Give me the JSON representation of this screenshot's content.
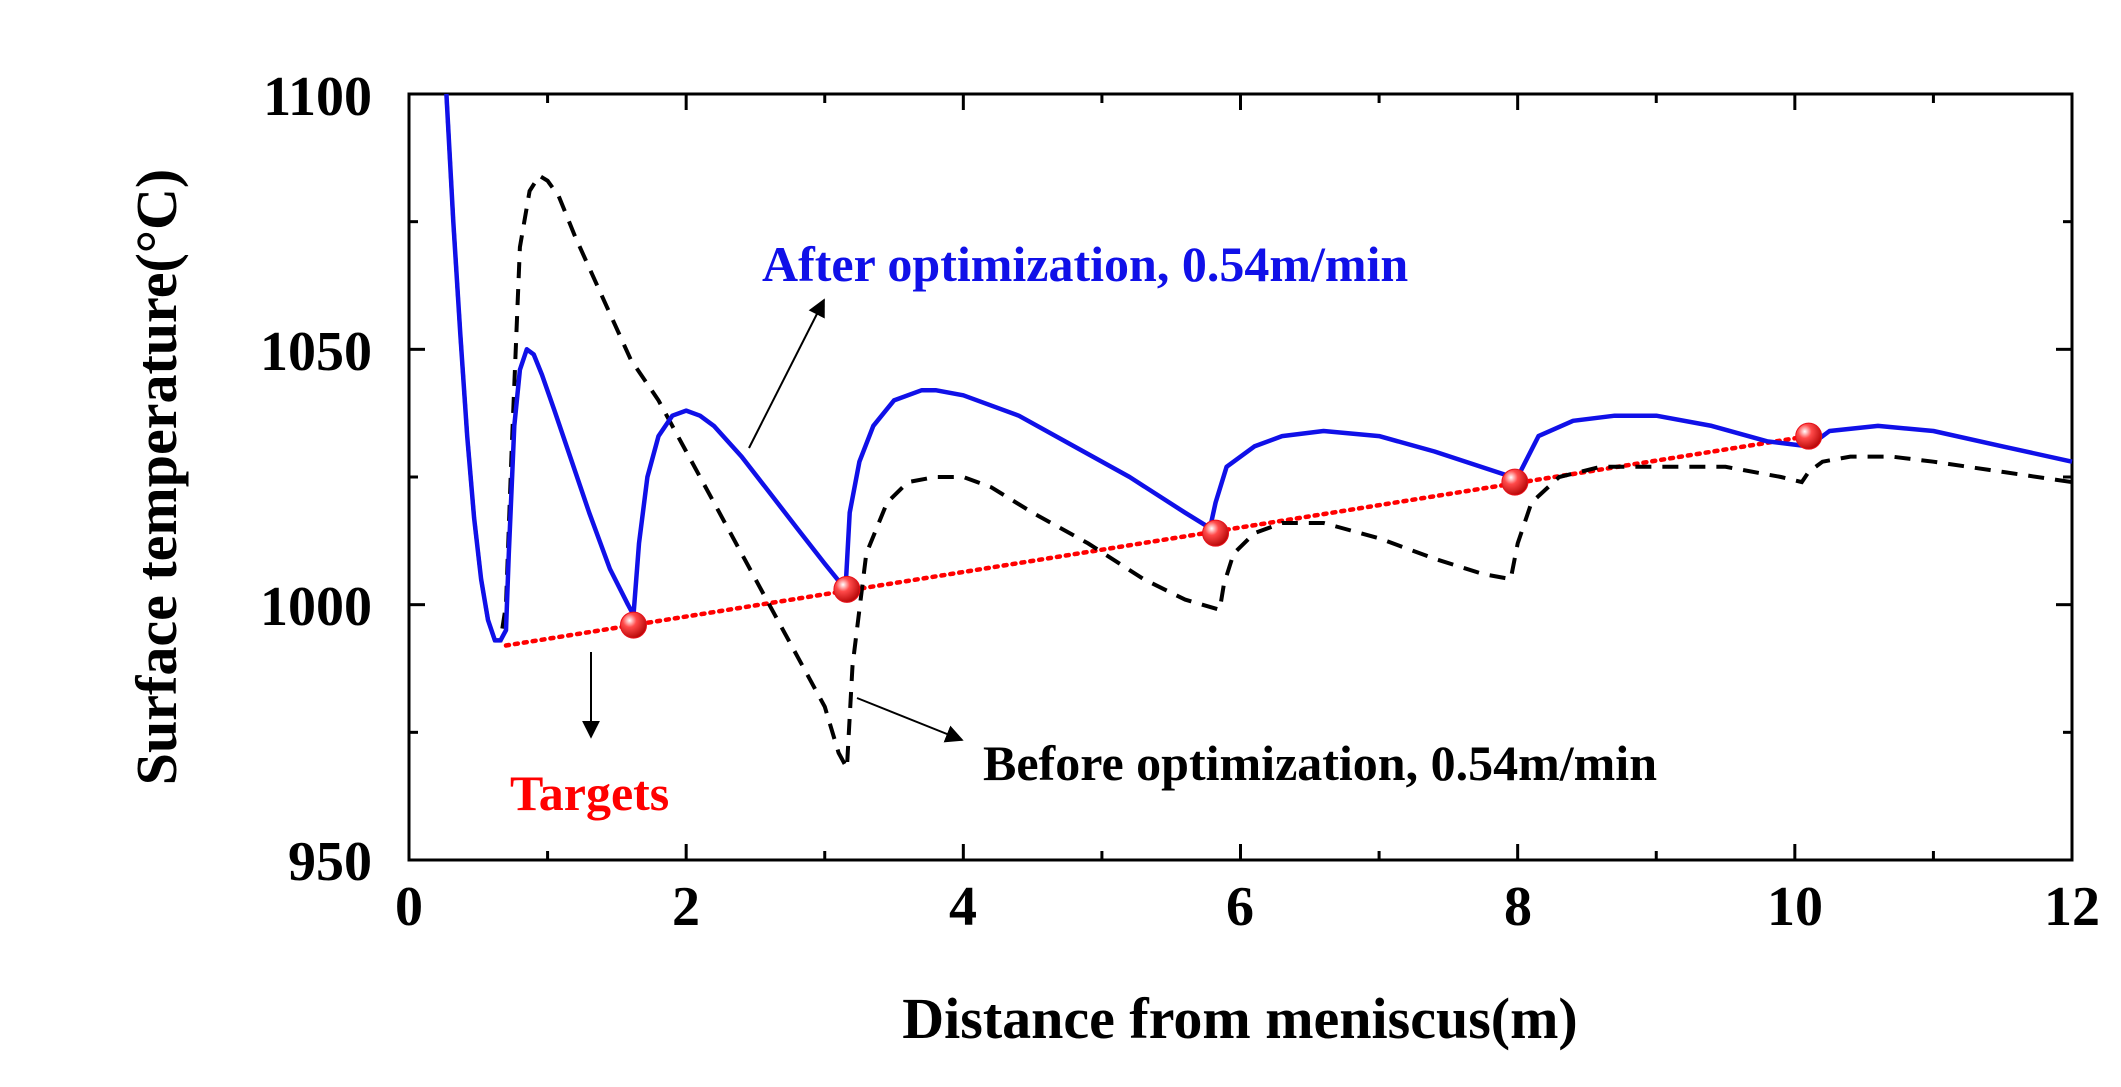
{
  "chart_data": {
    "type": "line",
    "title": "",
    "xlabel": "Distance from meniscus(m)",
    "ylabel": "Surface temperature(°C)",
    "xlim": [
      0,
      12
    ],
    "ylim": [
      950,
      1100
    ],
    "xticks": [
      0,
      2,
      4,
      6,
      8,
      10,
      12
    ],
    "yticks": [
      950,
      1000,
      1050,
      1100
    ],
    "grid": false,
    "colors": {
      "after": "#1010e8",
      "before": "#000000",
      "targets": "#ff0000",
      "target_marker": "#e8101a"
    },
    "series": [
      {
        "name": "After optimization, 0.54m/min",
        "style": "solid",
        "x": [
          0.27,
          0.32,
          0.37,
          0.42,
          0.47,
          0.52,
          0.57,
          0.62,
          0.66,
          0.7,
          0.72,
          0.76,
          0.8,
          0.85,
          0.9,
          0.96,
          1.05,
          1.15,
          1.3,
          1.45,
          1.58,
          1.62,
          1.66,
          1.72,
          1.8,
          1.9,
          2.0,
          2.1,
          2.2,
          2.4,
          2.6,
          2.8,
          3.0,
          3.12,
          3.15,
          3.18,
          3.25,
          3.35,
          3.5,
          3.7,
          3.8,
          4.0,
          4.4,
          4.8,
          5.2,
          5.6,
          5.78,
          5.82,
          5.9,
          6.1,
          6.3,
          6.6,
          7.0,
          7.4,
          7.96,
          8.0,
          8.15,
          8.4,
          8.7,
          9.0,
          9.4,
          9.8,
          10.1,
          10.25,
          10.6,
          11.0,
          11.5,
          12.0
        ],
        "y": [
          1100,
          1075,
          1053,
          1033,
          1017,
          1005,
          997,
          993,
          993,
          995,
          1010,
          1035,
          1046,
          1050,
          1049,
          1045,
          1038,
          1030,
          1018,
          1007,
          1000,
          998,
          1012,
          1025,
          1033,
          1037,
          1038,
          1037,
          1035,
          1029,
          1022,
          1015,
          1008,
          1004,
          1003,
          1018,
          1028,
          1035,
          1040,
          1042,
          1042,
          1041,
          1037,
          1031,
          1025,
          1018,
          1015,
          1020,
          1027,
          1031,
          1033,
          1034,
          1033,
          1030,
          1025,
          1025,
          1033,
          1036,
          1037,
          1037,
          1035,
          1032,
          1031,
          1034,
          1035,
          1034,
          1031,
          1028
        ]
      },
      {
        "name": "Before optimization, 0.54m/min",
        "style": "dashed",
        "x": [
          0.27,
          0.32,
          0.37,
          0.42,
          0.47,
          0.52,
          0.57,
          0.62,
          0.66,
          0.7,
          0.74,
          0.8,
          0.87,
          0.94,
          1.0,
          1.08,
          1.2,
          1.4,
          1.6,
          1.8,
          2.0,
          2.2,
          2.4,
          2.6,
          2.8,
          3.0,
          3.1,
          3.16,
          3.2,
          3.3,
          3.45,
          3.6,
          3.8,
          4.0,
          4.2,
          4.5,
          4.9,
          5.3,
          5.6,
          5.85,
          5.88,
          5.95,
          6.1,
          6.3,
          6.6,
          7.0,
          7.4,
          7.75,
          7.95,
          8.0,
          8.1,
          8.3,
          8.6,
          9.0,
          9.5,
          9.9,
          10.05,
          10.1,
          10.2,
          10.4,
          10.7,
          11.0,
          11.5,
          12.0
        ],
        "y": [
          1100,
          1075,
          1053,
          1033,
          1017,
          1005,
          997,
          993,
          993,
          1000,
          1030,
          1070,
          1081,
          1084,
          1083,
          1080,
          1072,
          1060,
          1048,
          1040,
          1030,
          1020,
          1010,
          1000,
          990,
          980,
          971,
          968,
          988,
          1010,
          1020,
          1024,
          1025,
          1025,
          1023,
          1018,
          1012,
          1005,
          1001,
          999,
          1004,
          1010,
          1014,
          1016,
          1016,
          1013,
          1009,
          1006,
          1005,
          1012,
          1020,
          1025,
          1027,
          1027,
          1027,
          1025,
          1024,
          1026,
          1028,
          1029,
          1029,
          1028,
          1026,
          1024
        ]
      },
      {
        "name": "Targets",
        "style": "dotted",
        "x": [
          0.7,
          10.1
        ],
        "y": [
          992,
          1033
        ]
      }
    ],
    "target_points": {
      "x": [
        1.62,
        3.16,
        5.82,
        7.98,
        10.1
      ],
      "y": [
        996,
        1003,
        1014,
        1024,
        1033
      ]
    },
    "annotations": [
      {
        "id": "after",
        "text": "After optimization, 0.54m/min",
        "color": "#1010e8"
      },
      {
        "id": "before",
        "text": "Before optimization, 0.54m/min",
        "color": "#000000"
      },
      {
        "id": "targets",
        "text": "Targets",
        "color": "#ff0000"
      }
    ]
  }
}
